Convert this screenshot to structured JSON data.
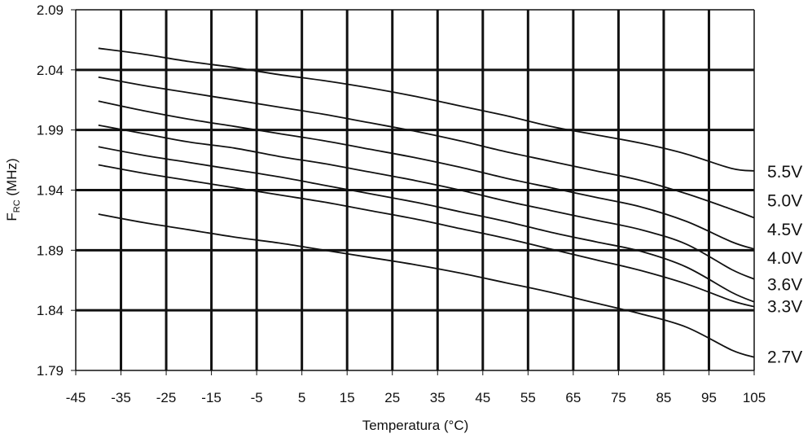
{
  "chart_data": {
    "type": "line",
    "xlabel": "Temperatura (°C)",
    "ylabel_main": "F",
    "ylabel_sub": "RC",
    "ylabel_unit": " (MHz)",
    "xlim": [
      -45,
      105
    ],
    "ylim": [
      1.79,
      2.09
    ],
    "x_ticks": [
      -45,
      -35,
      -25,
      -15,
      -5,
      5,
      15,
      25,
      35,
      45,
      55,
      65,
      75,
      85,
      95,
      105
    ],
    "x_tick_labels": [
      "-45",
      "-35",
      "-25",
      "-15",
      "-5",
      "5",
      "15",
      "25",
      "35",
      "45",
      "55",
      "65",
      "75",
      "85",
      "95",
      "105"
    ],
    "y_ticks": [
      1.79,
      1.84,
      1.89,
      1.94,
      1.99,
      2.04,
      2.09
    ],
    "y_tick_labels": [
      "1.79",
      "1.84",
      "1.89",
      "1.94",
      "1.99",
      "2.04",
      "2.09"
    ],
    "x": [
      -40,
      -30,
      -20,
      -10,
      0,
      10,
      20,
      30,
      40,
      50,
      60,
      70,
      80,
      90,
      100,
      105
    ],
    "series": [
      {
        "name": "5.5V",
        "values": [
          2.058,
          2.053,
          2.047,
          2.042,
          2.036,
          2.031,
          2.025,
          2.018,
          2.01,
          2.002,
          1.993,
          1.986,
          1.979,
          1.97,
          1.958,
          1.956
        ]
      },
      {
        "name": "5.0V",
        "values": [
          2.034,
          2.027,
          2.021,
          2.015,
          2.009,
          2.003,
          1.996,
          1.989,
          1.981,
          1.972,
          1.964,
          1.956,
          1.948,
          1.937,
          1.924,
          1.917
        ]
      },
      {
        "name": "4.5V",
        "values": [
          2.014,
          2.006,
          1.999,
          1.993,
          1.987,
          1.981,
          1.974,
          1.967,
          1.959,
          1.95,
          1.942,
          1.934,
          1.926,
          1.914,
          1.897,
          1.891
        ]
      },
      {
        "name": "4.0V",
        "values": [
          1.994,
          1.987,
          1.98,
          1.975,
          1.968,
          1.962,
          1.955,
          1.948,
          1.94,
          1.931,
          1.923,
          1.915,
          1.907,
          1.895,
          1.874,
          1.866
        ]
      },
      {
        "name": "3.6V",
        "values": [
          1.976,
          1.969,
          1.963,
          1.957,
          1.951,
          1.944,
          1.937,
          1.93,
          1.922,
          1.914,
          1.905,
          1.897,
          1.889,
          1.876,
          1.855,
          1.847
        ]
      },
      {
        "name": "3.3V",
        "values": [
          1.961,
          1.954,
          1.948,
          1.942,
          1.936,
          1.93,
          1.923,
          1.916,
          1.908,
          1.9,
          1.891,
          1.882,
          1.873,
          1.862,
          1.848,
          1.843
        ]
      },
      {
        "name": "2.7V",
        "values": [
          1.92,
          1.913,
          1.907,
          1.901,
          1.896,
          1.89,
          1.884,
          1.878,
          1.871,
          1.863,
          1.855,
          1.846,
          1.837,
          1.826,
          1.807,
          1.801
        ]
      }
    ],
    "series_label_positions": [
      {
        "name": "5.5V",
        "y": 1.956
      },
      {
        "name": "5.0V",
        "y": 1.932
      },
      {
        "name": "4.5V",
        "y": 1.908
      },
      {
        "name": "4.0V",
        "y": 1.884
      },
      {
        "name": "3.6V",
        "y": 1.862
      },
      {
        "name": "3.3V",
        "y": 1.844
      },
      {
        "name": "2.7V",
        "y": 1.802
      }
    ],
    "grid": true,
    "legend": "right-labels"
  }
}
